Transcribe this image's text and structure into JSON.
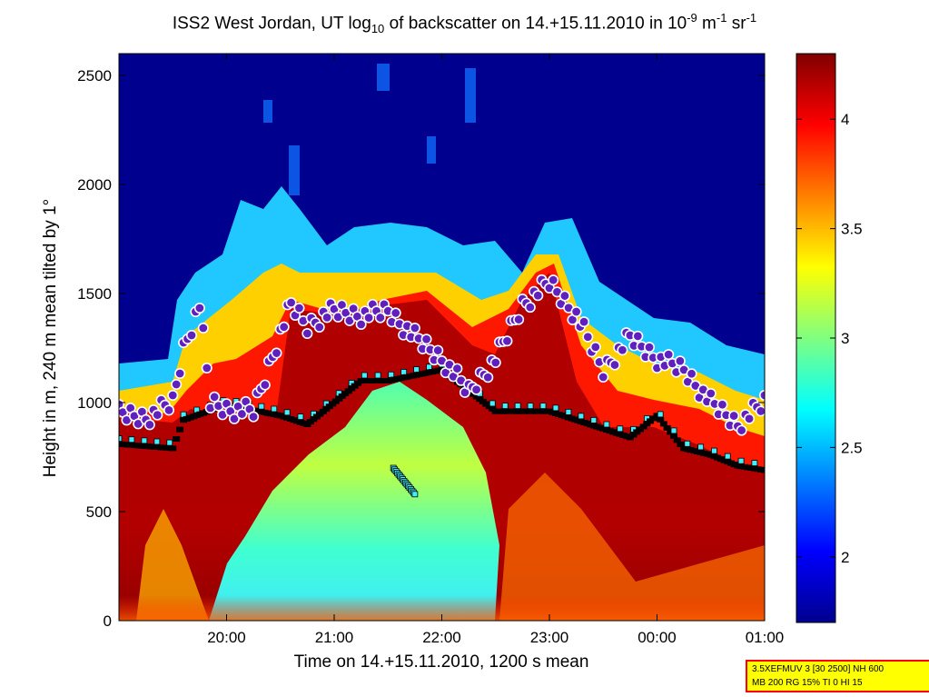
{
  "title": {
    "prefix": "ISS2 West Jordan, UT log",
    "sub": "10",
    "mid": " of backscatter on 14.+15.11.2010 in 10",
    "sup1": "-9",
    "unit1": " m",
    "sup2": "-1",
    "unit2": " sr",
    "sup3": "-1"
  },
  "info_box": {
    "line1": "3.5XEFMUV 3 [30 2500] NH 600",
    "line2": "MB 200 RG 15% TI 0 HI 15"
  },
  "chart_data": {
    "type": "heatmap",
    "xlabel": "Time on 14.+15.11.2010, 1200 s mean",
    "ylabel": "Height in m, 240 m mean tilted by 1°",
    "xlim": [
      19.0,
      25.0
    ],
    "ylim": [
      0,
      2600
    ],
    "x_ticks": [
      20,
      21,
      22,
      23,
      24,
      25
    ],
    "x_tick_labels": [
      "20:00",
      "21:00",
      "22:00",
      "23:00",
      "00:00",
      "01:00"
    ],
    "y_ticks": [
      0,
      500,
      1000,
      1500,
      2000,
      2500
    ],
    "y_tick_labels": [
      "0",
      "500",
      "1000",
      "1500",
      "2000",
      "2500"
    ],
    "colorbar": {
      "colormap": "jet",
      "range": [
        1.7,
        4.3
      ],
      "ticks": [
        2,
        2.5,
        3,
        3.5,
        4
      ],
      "tick_labels": [
        "2",
        "2.5",
        "3",
        "3.5",
        "4"
      ]
    },
    "grid": false,
    "cloud_layer_height_m": [
      [
        19.0,
        950
      ],
      [
        19.25,
        930
      ],
      [
        19.5,
        1000
      ],
      [
        19.6,
        1250
      ],
      [
        19.75,
        1450
      ],
      [
        19.85,
        1000
      ],
      [
        20.0,
        970
      ],
      [
        20.25,
        960
      ],
      [
        20.5,
        1320
      ],
      [
        20.6,
        1450
      ],
      [
        20.75,
        1350
      ],
      [
        20.9,
        1400
      ],
      [
        21.0,
        1420
      ],
      [
        21.25,
        1400
      ],
      [
        21.5,
        1420
      ],
      [
        21.75,
        1300
      ],
      [
        22.0,
        1200
      ],
      [
        22.25,
        1050
      ],
      [
        22.5,
        1200
      ],
      [
        22.75,
        1450
      ],
      [
        23.0,
        1550
      ],
      [
        23.25,
        1400
      ],
      [
        23.5,
        1150
      ],
      [
        23.75,
        1300
      ],
      [
        24.0,
        1200
      ],
      [
        24.25,
        1150
      ],
      [
        24.5,
        1000
      ],
      [
        24.75,
        900
      ],
      [
        25.0,
        1000
      ]
    ],
    "mixing_layer_height_m": [
      [
        19.0,
        810
      ],
      [
        19.5,
        790
      ],
      [
        19.6,
        920
      ],
      [
        20.0,
        990
      ],
      [
        20.5,
        940
      ],
      [
        20.75,
        900
      ],
      [
        21.25,
        1100
      ],
      [
        21.5,
        1100
      ],
      [
        22.0,
        1150
      ],
      [
        22.5,
        960
      ],
      [
        23.0,
        960
      ],
      [
        23.5,
        880
      ],
      [
        23.75,
        840
      ],
      [
        24.0,
        940
      ],
      [
        24.25,
        790
      ],
      [
        24.5,
        760
      ],
      [
        24.75,
        710
      ],
      [
        25.0,
        690
      ]
    ],
    "aerosol_layer_descending_m": [
      [
        21.55,
        700
      ],
      [
        21.65,
        640
      ],
      [
        21.75,
        580
      ]
    ]
  }
}
